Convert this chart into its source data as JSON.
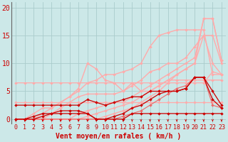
{
  "background_color": "#cce8e8",
  "grid_color": "#aacccc",
  "xlabel": "Vent moyen/en rafales ( km/h )",
  "xlim": [
    -0.5,
    23.5
  ],
  "ylim": [
    -0.8,
    21
  ],
  "yticks": [
    0,
    5,
    10,
    15,
    20
  ],
  "xticks": [
    0,
    1,
    2,
    3,
    4,
    5,
    6,
    7,
    8,
    9,
    10,
    11,
    12,
    13,
    14,
    15,
    16,
    17,
    18,
    19,
    20,
    21,
    22,
    23
  ],
  "x": [
    0,
    1,
    2,
    3,
    4,
    5,
    6,
    7,
    8,
    9,
    10,
    11,
    12,
    13,
    14,
    15,
    16,
    17,
    18,
    19,
    20,
    21,
    22,
    23
  ],
  "series": [
    {
      "y": [
        3,
        3,
        3,
        3,
        3,
        3,
        3,
        3,
        3,
        3,
        3,
        3,
        3,
        3,
        3,
        3,
        3,
        3,
        3,
        3,
        3,
        3,
        3,
        3
      ],
      "color": "#ffaaaa",
      "lw": 0.9,
      "ms": 2.0
    },
    {
      "y": [
        6.5,
        6.5,
        6.5,
        6.5,
        6.5,
        6.5,
        6.5,
        6.5,
        6.5,
        6.5,
        6.5,
        6.5,
        6.5,
        6.5,
        6.5,
        6.5,
        6.5,
        6.5,
        6.5,
        6.5,
        6.5,
        6.5,
        8.5,
        8.0
      ],
      "color": "#ffaaaa",
      "lw": 0.9,
      "ms": 2.0
    },
    {
      "y": [
        0,
        0,
        1,
        2,
        2,
        3,
        4,
        5,
        6.5,
        7,
        8,
        8,
        8.5,
        9,
        10,
        13,
        15,
        15.5,
        16,
        16,
        16,
        16,
        8,
        8
      ],
      "color": "#ffaaaa",
      "lw": 1.0,
      "ms": 2.0
    },
    {
      "y": [
        0,
        0,
        0,
        1,
        2,
        3,
        4,
        5.5,
        10,
        9,
        7,
        6.5,
        5,
        6.5,
        5,
        5,
        6,
        7,
        7,
        7,
        7,
        7,
        7,
        7
      ],
      "color": "#ffaaaa",
      "lw": 1.0,
      "ms": 2.0
    },
    {
      "y": [
        0,
        0,
        0,
        0,
        0,
        0,
        0,
        0,
        0,
        0,
        0.5,
        1,
        1.5,
        2,
        3,
        4,
        5,
        6.5,
        8,
        9,
        10,
        15,
        15,
        10
      ],
      "color": "#ffaaaa",
      "lw": 1.0,
      "ms": 2.0
    },
    {
      "y": [
        0,
        0,
        0,
        0,
        0,
        0,
        0,
        1,
        1.5,
        2,
        2.5,
        3,
        3,
        4,
        5,
        6,
        7,
        8,
        9,
        10,
        11,
        18,
        18,
        10.5
      ],
      "color": "#ffaaaa",
      "lw": 1.0,
      "ms": 2.0
    },
    {
      "y": [
        0,
        0,
        0,
        0,
        0,
        0,
        0,
        0,
        0.5,
        1,
        1.5,
        2,
        2.5,
        3,
        4,
        5,
        6,
        7,
        8,
        9,
        10,
        18,
        18,
        10.5
      ],
      "color": "#ffaaaa",
      "lw": 1.0,
      "ms": 2.0
    },
    {
      "y": [
        0,
        0,
        0,
        0,
        1,
        2,
        3,
        4,
        4.5,
        4.5,
        4.5,
        4.5,
        5,
        6,
        7,
        8.5,
        9,
        10,
        10,
        11,
        13,
        15,
        10,
        8
      ],
      "color": "#ffaaaa",
      "lw": 1.0,
      "ms": 2.0
    },
    {
      "y": [
        0,
        0,
        0,
        0,
        0,
        0,
        0,
        0,
        0,
        0,
        0,
        0,
        0.5,
        1,
        1.5,
        2.5,
        3.5,
        4.5,
        5.5,
        6,
        7.5,
        7.5,
        2.5,
        2
      ],
      "color": "#ee6666",
      "lw": 0.8,
      "ms": 2.0
    },
    {
      "y": [
        0,
        0,
        0.5,
        1,
        1,
        1.5,
        1.5,
        1.5,
        1,
        0,
        0,
        0.5,
        1,
        2,
        2.5,
        3.5,
        4.5,
        5,
        5,
        5.5,
        7.5,
        7.5,
        3.5,
        2
      ],
      "color": "#cc0000",
      "lw": 0.9,
      "ms": 2.0
    },
    {
      "y": [
        2.5,
        2.5,
        2.5,
        2.5,
        2.5,
        2.5,
        2.5,
        2.5,
        3.5,
        3,
        2.5,
        3,
        3.5,
        4,
        4,
        5,
        5,
        5,
        5,
        5.5,
        7.5,
        7.5,
        5,
        2.5
      ],
      "color": "#cc0000",
      "lw": 0.9,
      "ms": 2.0
    },
    {
      "y": [
        0,
        0,
        0,
        0.5,
        1,
        1,
        1,
        1,
        1,
        0,
        0,
        0,
        0,
        1,
        1,
        1,
        1,
        1,
        1,
        1,
        1,
        1,
        1,
        1
      ],
      "color": "#cc0000",
      "lw": 0.9,
      "ms": 2.0
    }
  ],
  "tick_color": "#cc0000",
  "tick_fontsize": 6,
  "xlabel_fontsize": 7,
  "arrow_color": "#cc0000",
  "left_spine_color": "#666666"
}
